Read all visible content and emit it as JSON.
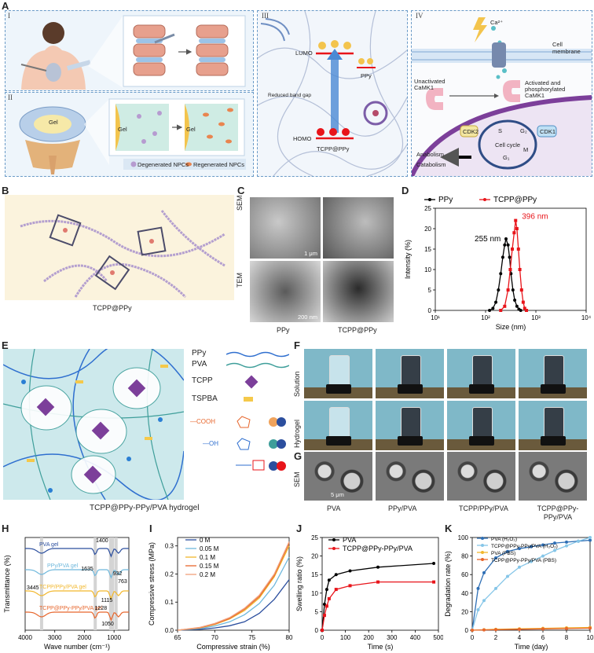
{
  "panel_labels": {
    "a": "A",
    "b": "B",
    "c": "C",
    "d": "D",
    "e": "E",
    "f": "F",
    "g": "G",
    "h": "H",
    "i": "I",
    "j": "J",
    "k": "K"
  },
  "panel_a": {
    "roman": [
      "I",
      "II",
      "III",
      "IV"
    ],
    "gel": "Gel",
    "legend": {
      "degenerated": "Degenerated NPCs",
      "regenerated": "Regenerated NPCs"
    },
    "lumo": "LUMO",
    "homo": "HOMO",
    "electron": "e⁻",
    "hole": "h",
    "reduced_gap": "Reduced band gap",
    "ppy": "PPy",
    "tcpp_ppy": "TCPP@PPy",
    "ca": "Ca²⁺",
    "cell_membrane": "Cell membrane",
    "unactivated": "Unactivated CaMK1",
    "activated": "Activated and phosphorylated CaMK1",
    "cdk2": "CDK2",
    "cdk1": "CDK1",
    "s": "S",
    "g2": "G₂",
    "g1": "G₁",
    "m": "M",
    "cell_cycle": "Cell cycle",
    "anabolism": "Anabolism",
    "catabolism": "Catabolism",
    "p": "P"
  },
  "panel_b": {
    "caption": "TCPP@PPy"
  },
  "panel_c": {
    "sem": "SEM",
    "tem": "TEM",
    "col1": "PPy",
    "col2": "TCPP@PPy",
    "scale1": "1 μm",
    "scale2": "200 nm"
  },
  "panel_e": {
    "caption": "TCPP@PPy-PPy/PVA hydrogel",
    "legend": [
      "PPy",
      "PVA",
      "TCPP",
      "TSPBA"
    ],
    "groups": [
      "—COOH",
      "—OH"
    ]
  },
  "panel_f": {
    "row1": "Solution",
    "row2": "Hydrogel",
    "samples": [
      "PVA",
      "PPy/PVA",
      "TCPP/PPy/PVA",
      "TCPP@PPy-PPy/PVA"
    ]
  },
  "panel_g": {
    "row": "SEM",
    "scale": "5 μm"
  },
  "panel_h": {
    "xlabel": "Wave number (cm⁻¹)",
    "ylabel": "Transmittance (%)",
    "ticks": [
      "4000",
      "3000",
      "2000",
      "1000"
    ],
    "traces": [
      "PVA gel",
      "PPy/PVA gel",
      "TCPP/PPy/PVA gel",
      "TCPP@PPy-PPy/PVA gel"
    ],
    "peaks": [
      "1400",
      "1635",
      "932",
      "3445",
      "1115",
      "763",
      "1228",
      "1050"
    ]
  },
  "chart_data": [
    {
      "type": "line",
      "panel": "D",
      "xlabel": "Size (nm)",
      "ylabel": "Intensity (%)",
      "x_scale": "log",
      "xlim": [
        10,
        10000
      ],
      "ylim": [
        0,
        25
      ],
      "x_ticks": [
        "10¹",
        "10²",
        "10³",
        "10⁴"
      ],
      "y_ticks": [
        "0",
        "5",
        "10",
        "15",
        "20",
        "25"
      ],
      "legend_position": "top",
      "annotations": [
        "255 nm",
        "396 nm"
      ],
      "series": [
        {
          "name": "PPy",
          "color": "#000000",
          "x": [
            120,
            140,
            160,
            180,
            200,
            220,
            240,
            255,
            280,
            300,
            320,
            350,
            380,
            420,
            460,
            500
          ],
          "y": [
            0,
            0.5,
            2,
            5,
            9,
            13,
            16,
            17.5,
            16,
            13,
            9,
            5,
            2.5,
            1,
            0.3,
            0
          ]
        },
        {
          "name": "TCPP@PPy",
          "color": "#e8141a",
          "x": [
            200,
            240,
            280,
            310,
            340,
            370,
            396,
            420,
            450,
            480,
            520,
            560,
            600,
            650
          ],
          "y": [
            0,
            1,
            5,
            10,
            15,
            19,
            22,
            20,
            15,
            10,
            5,
            2,
            0.5,
            0
          ]
        }
      ]
    },
    {
      "type": "line",
      "panel": "I",
      "xlabel": "Compressive strain (%)",
      "ylabel": "Compressive stress (MPa)",
      "xlim": [
        65,
        80
      ],
      "ylim": [
        0,
        0.33
      ],
      "x_ticks": [
        "65",
        "70",
        "75",
        "80"
      ],
      "y_ticks": [
        "0.0",
        "0.1",
        "0.2",
        "0.3"
      ],
      "legend_position": "top-left",
      "series": [
        {
          "name": "0 M",
          "color": "#2b4e9e",
          "x": [
            65,
            68,
            70,
            72,
            74,
            76,
            78,
            80
          ],
          "y": [
            0,
            0.003,
            0.008,
            0.016,
            0.03,
            0.06,
            0.11,
            0.18
          ]
        },
        {
          "name": "0.05 M",
          "color": "#6fb8dc",
          "x": [
            65,
            68,
            70,
            72,
            74,
            76,
            78,
            80
          ],
          "y": [
            0,
            0.006,
            0.015,
            0.03,
            0.055,
            0.095,
            0.16,
            0.26
          ]
        },
        {
          "name": "0.1 M",
          "color": "#f2b72c",
          "x": [
            65,
            68,
            70,
            72,
            74,
            76,
            78,
            80
          ],
          "y": [
            0,
            0.008,
            0.02,
            0.04,
            0.07,
            0.115,
            0.19,
            0.3
          ]
        },
        {
          "name": "0.15 M",
          "color": "#e7662c",
          "x": [
            65,
            68,
            70,
            72,
            74,
            76,
            78,
            80
          ],
          "y": [
            0,
            0.009,
            0.022,
            0.042,
            0.075,
            0.12,
            0.195,
            0.31
          ]
        },
        {
          "name": "0.2 M",
          "color": "#f2a17b",
          "x": [
            65,
            68,
            70,
            72,
            74,
            76,
            78,
            80
          ],
          "y": [
            0,
            0.01,
            0.024,
            0.045,
            0.078,
            0.125,
            0.2,
            0.315
          ]
        }
      ]
    },
    {
      "type": "line",
      "panel": "J",
      "xlabel": "Time (s)",
      "ylabel": "Swelling ratio (%)",
      "xlim": [
        0,
        500
      ],
      "ylim": [
        0,
        25
      ],
      "x_ticks": [
        "0",
        "100",
        "200",
        "300",
        "400",
        "500"
      ],
      "y_ticks": [
        "0",
        "5",
        "10",
        "15",
        "20",
        "25"
      ],
      "legend_position": "top-left",
      "series": [
        {
          "name": "PVA",
          "color": "#000000",
          "x": [
            0,
            10,
            20,
            30,
            60,
            120,
            240,
            480
          ],
          "y": [
            0,
            7,
            11,
            13.5,
            15,
            16,
            17,
            18
          ]
        },
        {
          "name": "TCPP@PPy-PPy/PVA",
          "color": "#e8141a",
          "x": [
            0,
            10,
            20,
            30,
            60,
            120,
            240,
            480
          ],
          "y": [
            0,
            4,
            6.5,
            8.5,
            11,
            12,
            13,
            13
          ]
        }
      ]
    },
    {
      "type": "line",
      "panel": "K",
      "xlabel": "Time (day)",
      "ylabel": "Degradation rate (%)",
      "xlim": [
        0,
        10
      ],
      "ylim": [
        0,
        100
      ],
      "x_ticks": [
        "0",
        "2",
        "4",
        "6",
        "8",
        "10"
      ],
      "y_ticks": [
        "0",
        "20",
        "40",
        "60",
        "80",
        "100"
      ],
      "legend_position": "top-left",
      "series": [
        {
          "name": "PVA (H₂O₂)",
          "color": "#2f6fb5",
          "x": [
            0,
            0.5,
            1,
            2,
            3,
            4,
            5,
            6,
            7,
            8,
            9,
            10
          ],
          "y": [
            0,
            45,
            62,
            78,
            85,
            88,
            90,
            92,
            94,
            95,
            96,
            97
          ]
        },
        {
          "name": "TCPP@PPy-PPy/PVA (H₂O₂)",
          "color": "#86c6e8",
          "x": [
            0,
            0.5,
            1,
            2,
            3,
            4,
            5,
            6,
            7,
            8,
            9,
            10
          ],
          "y": [
            0,
            22,
            32,
            45,
            58,
            68,
            74,
            80,
            86,
            91,
            96,
            100
          ]
        },
        {
          "name": "PVA (PBS)",
          "color": "#f2b72c",
          "x": [
            0,
            1,
            2,
            4,
            6,
            8,
            10
          ],
          "y": [
            0,
            0.5,
            1,
            1.5,
            2,
            2.5,
            3
          ]
        },
        {
          "name": "TCPP@PPy-PPy/PVA (PBS)",
          "color": "#e7662c",
          "x": [
            0,
            1,
            2,
            4,
            6,
            8,
            10
          ],
          "y": [
            0,
            0.3,
            0.6,
            1,
            1.4,
            1.8,
            2.2
          ]
        }
      ]
    }
  ]
}
